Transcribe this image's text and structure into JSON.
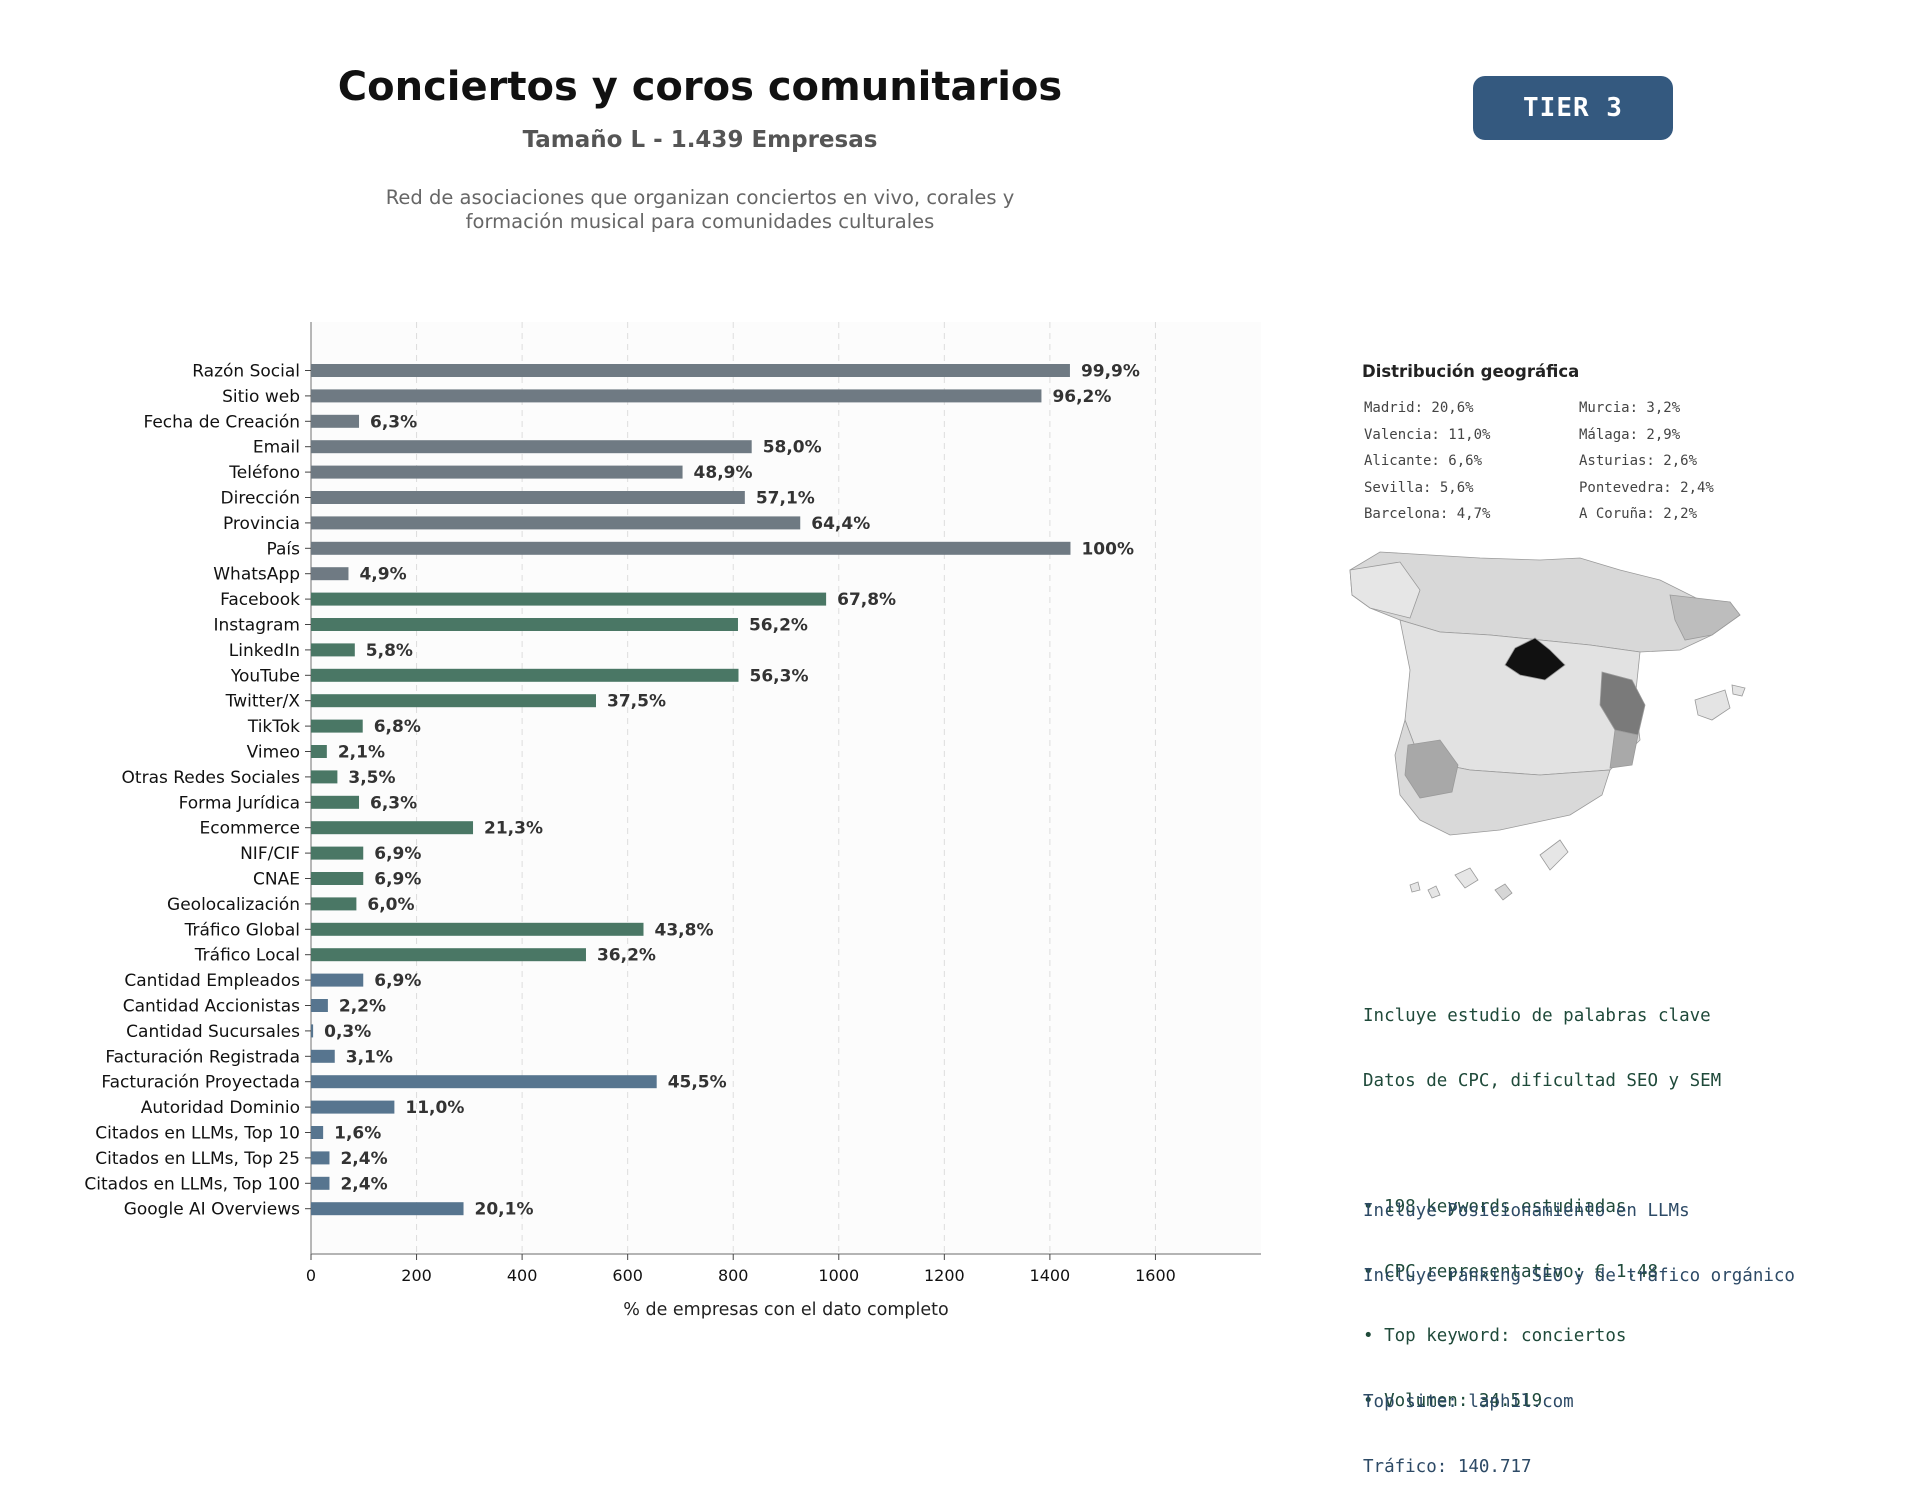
{
  "header": {
    "title": "Conciertos y coros comunitarios",
    "subtitle": "Tamaño L - 1.439 Empresas",
    "description_line1": "Red de asociaciones que organizan conciertos en vivo, corales y",
    "description_line2": "formación musical para comunidades culturales",
    "tier_label": "TIER 3"
  },
  "colors": {
    "contact": "#6f7a83",
    "social": "#4a7765",
    "business": "#57758f",
    "tier_badge": "#34597f"
  },
  "chart_data": {
    "type": "bar",
    "orientation": "horizontal",
    "xlabel": "% de empresas con el dato completo",
    "xlim": [
      0,
      1800
    ],
    "xticks": [
      0,
      200,
      400,
      600,
      800,
      1000,
      1200,
      1400,
      1600
    ],
    "grid": "vertical-dashed",
    "total_companies": 1439,
    "categories": [
      "Razón Social",
      "Sitio web",
      "Fecha de Creación",
      "Email",
      "Teléfono",
      "Dirección",
      "Provincia",
      "País",
      "WhatsApp",
      "Facebook",
      "Instagram",
      "LinkedIn",
      "YouTube",
      "Twitter/X",
      "TikTok",
      "Vimeo",
      "Otras Redes Sociales",
      "Forma Jurídica",
      "Ecommerce",
      "NIF/CIF",
      "CNAE",
      "Geolocalización",
      "Tráfico Global",
      "Tráfico Local",
      "Cantidad Empleados",
      "Cantidad Accionistas",
      "Cantidad Sucursales",
      "Facturación Registrada",
      "Facturación Proyectada",
      "Autoridad Dominio",
      "Citados en LLMs, Top 10",
      "Citados en LLMs, Top 25",
      "Citados en LLMs, Top 100",
      "Google AI Overviews"
    ],
    "values": [
      1438,
      1384,
      91,
      835,
      704,
      822,
      927,
      1439,
      71,
      976,
      809,
      83,
      810,
      540,
      98,
      30,
      50,
      91,
      307,
      99,
      99,
      86,
      630,
      521,
      99,
      32,
      4,
      45,
      655,
      158,
      23,
      35,
      35,
      289
    ],
    "labels": [
      "99,9%",
      "96,2%",
      "6,3%",
      "58,0%",
      "48,9%",
      "57,1%",
      "64,4%",
      "100%",
      "4,9%",
      "67,8%",
      "56,2%",
      "5,8%",
      "56,3%",
      "37,5%",
      "6,8%",
      "2,1%",
      "3,5%",
      "6,3%",
      "21,3%",
      "6,9%",
      "6,9%",
      "6,0%",
      "43,8%",
      "36,2%",
      "6,9%",
      "2,2%",
      "0,3%",
      "3,1%",
      "45,5%",
      "11,0%",
      "1,6%",
      "2,4%",
      "2,4%",
      "20,1%"
    ],
    "groups": [
      "contact",
      "contact",
      "contact",
      "contact",
      "contact",
      "contact",
      "contact",
      "contact",
      "contact",
      "social",
      "social",
      "social",
      "social",
      "social",
      "social",
      "social",
      "social",
      "social",
      "social",
      "social",
      "social",
      "social",
      "social",
      "social",
      "business",
      "business",
      "business",
      "business",
      "business",
      "business",
      "business",
      "business",
      "business",
      "business"
    ]
  },
  "geo": {
    "title": "Distribución geográfica",
    "left_column": [
      "Madrid: 20,6%",
      "Valencia: 11,0%",
      "Alicante: 6,6%",
      "Sevilla: 5,6%",
      "Barcelona: 4,7%"
    ],
    "right_column": [
      "Murcia: 3,2%",
      "Málaga: 2,9%",
      "Asturias: 2,6%",
      "Pontevedra: 2,4%",
      "A Coruña: 2,2%"
    ]
  },
  "seo": {
    "line1": "Incluye estudio de palabras clave",
    "line2": "Datos de CPC, dificultad SEO y SEM",
    "bullet1": "• 198 keywords estudiadas",
    "bullet2": "• CPC representativo: € 1.48",
    "bullet3": "• Top keyword: conciertos",
    "bullet4": "• Volumen: 34.519"
  },
  "llm": {
    "line1": "Incluye Posicionamiento en LLMs",
    "line2": "Incluye ranking SEO y de tráfico orgánico",
    "top_site": "Top site: laphil.com",
    "traffic": "Tráfico: 140.717"
  }
}
